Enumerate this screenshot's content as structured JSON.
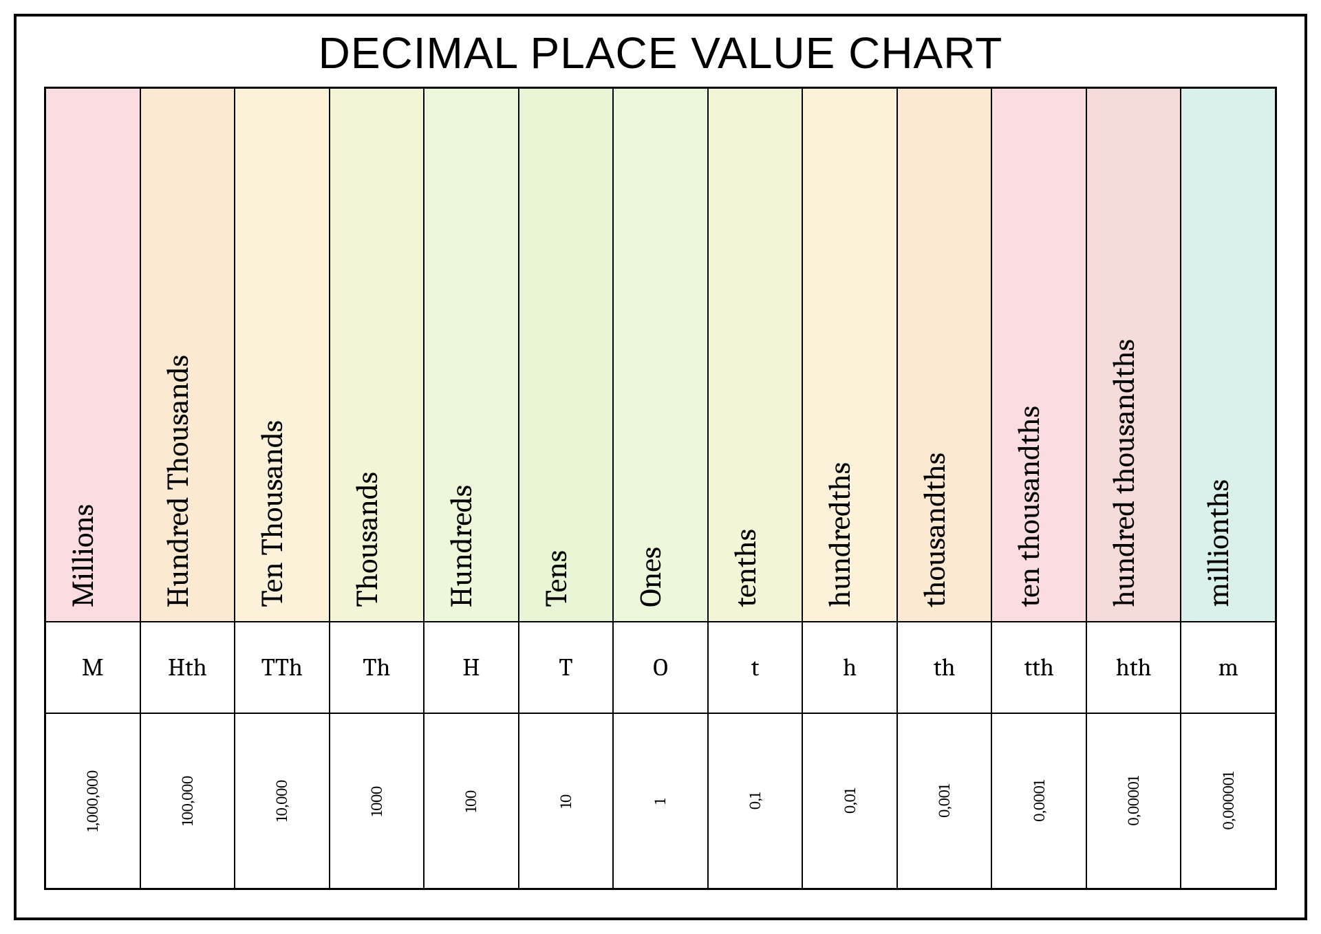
{
  "title": "DECIMAL PLACE VALUE CHART",
  "title_fontsize": 64,
  "columns": [
    {
      "name": "Millions",
      "abbr": "M",
      "value": "1,000,000",
      "bg": "#fbdde1"
    },
    {
      "name": "Hundred Thousands",
      "abbr": "Hth",
      "value": "100,000",
      "bg": "#fbead1"
    },
    {
      "name": "Ten Thousands",
      "abbr": "TTh",
      "value": "10,000",
      "bg": "#fcf2da"
    },
    {
      "name": "Thousands",
      "abbr": "Th",
      "value": "1000",
      "bg": "#f4f5d7"
    },
    {
      "name": "Hundreds",
      "abbr": "H",
      "value": "100",
      "bg": "#edf7da"
    },
    {
      "name": "Tens",
      "abbr": "T",
      "value": "10",
      "bg": "#e7f5d5"
    },
    {
      "name": "Ones",
      "abbr": "O",
      "value": "1",
      "bg": "#edf7da"
    },
    {
      "name": "tenths",
      "abbr": "t",
      "value": "0,1",
      "bg": "#f4f5d7"
    },
    {
      "name": "hundredths",
      "abbr": "h",
      "value": "0,01",
      "bg": "#fcf2da"
    },
    {
      "name": "thousandths",
      "abbr": "th",
      "value": "0,001",
      "bg": "#fbead1"
    },
    {
      "name": "ten thousandths",
      "abbr": "tth",
      "value": "0,0001",
      "bg": "#fbdde1"
    },
    {
      "name": "hundred thousandths",
      "abbr": "hth",
      "value": "0,00001",
      "bg": "#f5dcdb"
    },
    {
      "name": "millionths",
      "abbr": "m",
      "value": "0,000001",
      "bg": "#daf0ea"
    }
  ],
  "layout": {
    "name_row_height_fr": 6.4,
    "abbr_row_height_fr": 1.1,
    "value_row_height_fr": 2.1,
    "name_fontsize": 44,
    "abbr_fontsize": 36,
    "value_fontsize": 23,
    "border_color": "#000000",
    "background_color": "#ffffff"
  }
}
